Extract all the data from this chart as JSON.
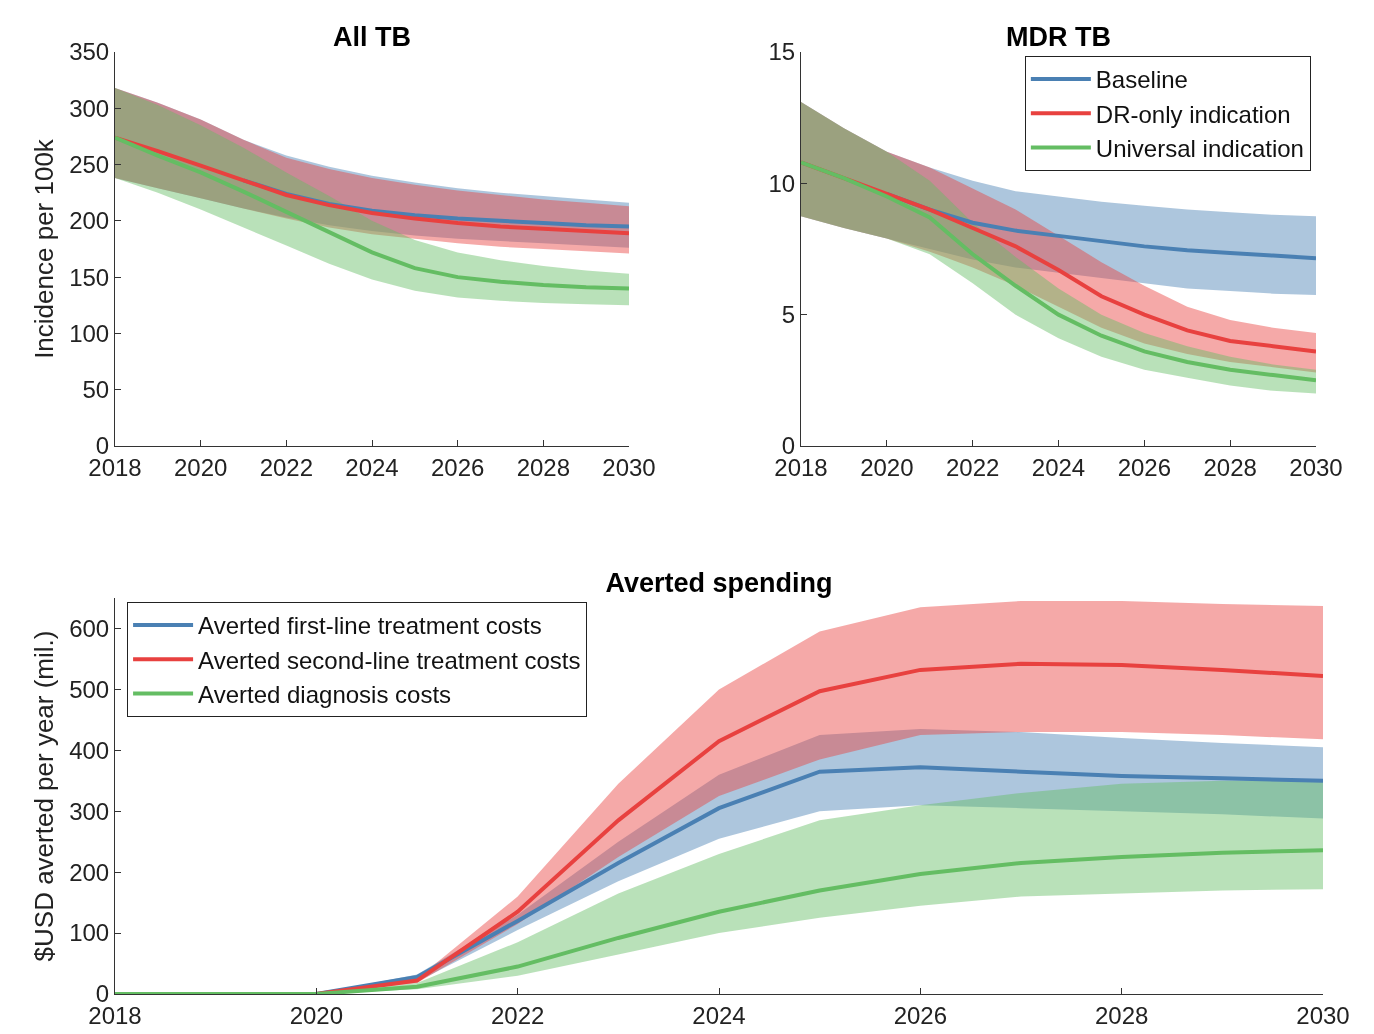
{
  "chart_data": [
    {
      "type": "line",
      "title": "All TB",
      "ylabel": "Incidence per 100k",
      "x": [
        2018,
        2019,
        2020,
        2021,
        2022,
        2023,
        2024,
        2025,
        2026,
        2027,
        2028,
        2029,
        2030
      ],
      "xlim": [
        2018,
        2030
      ],
      "xticks": [
        2018,
        2020,
        2022,
        2024,
        2026,
        2028,
        2030
      ],
      "ylim": [
        0,
        350
      ],
      "yticks": [
        0,
        50,
        100,
        150,
        200,
        250,
        300,
        350
      ],
      "grid": false,
      "legend": false,
      "series": [
        {
          "color": "#4a80b3",
          "values": [
            null,
            null,
            null,
            236,
            224,
            215,
            209,
            205,
            202,
            200,
            198,
            196,
            195
          ],
          "upper": [
            318,
            305,
            290,
            272,
            258,
            248,
            240,
            234,
            229,
            225,
            222,
            219,
            216
          ],
          "lower": [
            238,
            229,
            220,
            211,
            203,
            196,
            191,
            187,
            184,
            182,
            180,
            178,
            176
          ]
        },
        {
          "color": "#e8413f",
          "values": [
            274,
            262,
            249,
            236,
            223,
            214,
            207,
            202,
            198,
            195,
            193,
            191,
            189
          ],
          "upper": [
            318,
            305,
            290,
            272,
            256,
            246,
            238,
            232,
            227,
            223,
            219,
            216,
            213
          ],
          "lower": [
            238,
            229,
            220,
            211,
            202,
            194,
            188,
            184,
            180,
            177,
            175,
            173,
            171
          ]
        },
        {
          "color": "#64bd63",
          "values": [
            274,
            258,
            243,
            226,
            208,
            190,
            172,
            158,
            150,
            146,
            143,
            141,
            140
          ],
          "upper": [
            318,
            303,
            285,
            265,
            243,
            222,
            200,
            183,
            172,
            165,
            160,
            156,
            153
          ],
          "lower": [
            238,
            225,
            210,
            194,
            178,
            162,
            148,
            138,
            132,
            129,
            127,
            126,
            125
          ]
        }
      ]
    },
    {
      "type": "line",
      "title": "MDR TB",
      "x": [
        2018,
        2019,
        2020,
        2021,
        2022,
        2023,
        2024,
        2025,
        2026,
        2027,
        2028,
        2029,
        2030
      ],
      "xlim": [
        2018,
        2030
      ],
      "xticks": [
        2018,
        2020,
        2022,
        2024,
        2026,
        2028,
        2030
      ],
      "ylim": [
        0,
        15
      ],
      "yticks": [
        0,
        5,
        10,
        15
      ],
      "grid": false,
      "legend": "top right",
      "series": [
        {
          "name": "Baseline",
          "color": "#4a80b3",
          "values": [
            null,
            null,
            9.6,
            9.0,
            8.5,
            8.2,
            8.0,
            7.8,
            7.6,
            7.45,
            7.35,
            7.25,
            7.15
          ],
          "upper": [
            13.1,
            12.1,
            11.2,
            10.6,
            10.1,
            9.7,
            9.5,
            9.3,
            9.15,
            9.0,
            8.9,
            8.8,
            8.75
          ],
          "lower": [
            8.75,
            8.3,
            7.9,
            7.5,
            7.1,
            6.8,
            6.6,
            6.4,
            6.2,
            6.0,
            5.9,
            5.8,
            5.75
          ]
        },
        {
          "name": "DR-only indication",
          "color": "#e8413f",
          "values": [
            10.8,
            10.2,
            9.6,
            9.0,
            8.3,
            7.6,
            6.7,
            5.7,
            5.0,
            4.4,
            4.0,
            3.8,
            3.6
          ],
          "upper": [
            13.1,
            12.1,
            11.2,
            10.6,
            9.8,
            9.0,
            8.0,
            7.0,
            6.1,
            5.3,
            4.8,
            4.5,
            4.3
          ],
          "lower": [
            8.75,
            8.3,
            7.9,
            7.4,
            6.8,
            6.1,
            5.3,
            4.5,
            3.9,
            3.5,
            3.2,
            3.0,
            2.8
          ]
        },
        {
          "name": "Universal indication",
          "color": "#64bd63",
          "values": [
            10.8,
            10.2,
            9.5,
            8.7,
            7.3,
            6.1,
            5.0,
            4.2,
            3.6,
            3.2,
            2.9,
            2.7,
            2.5
          ],
          "upper": [
            13.1,
            12.1,
            11.2,
            10.1,
            8.5,
            7.2,
            6.0,
            5.0,
            4.3,
            3.8,
            3.4,
            3.1,
            2.9
          ],
          "lower": [
            8.75,
            8.3,
            7.9,
            7.3,
            6.2,
            5.0,
            4.1,
            3.4,
            2.9,
            2.6,
            2.3,
            2.1,
            2.0
          ]
        }
      ]
    },
    {
      "type": "line",
      "title": "Averted spending",
      "ylabel": "$USD averted per year (mil.)",
      "x": [
        2018,
        2019,
        2020,
        2021,
        2022,
        2023,
        2024,
        2025,
        2026,
        2027,
        2028,
        2029,
        2030
      ],
      "xlim": [
        2018,
        2030
      ],
      "xticks": [
        2018,
        2020,
        2022,
        2024,
        2026,
        2028,
        2030
      ],
      "ylim": [
        0,
        650
      ],
      "yticks": [
        0,
        100,
        200,
        300,
        400,
        500,
        600
      ],
      "grid": false,
      "legend": "top left",
      "series": [
        {
          "name": "Averted first-line treatment costs",
          "color": "#4a80b3",
          "values": [
            0,
            0,
            0,
            28,
            120,
            215,
            305,
            365,
            372,
            365,
            358,
            354,
            350
          ],
          "upper": [
            0,
            0,
            0,
            32,
            130,
            250,
            360,
            425,
            435,
            430,
            420,
            412,
            405
          ],
          "lower": [
            0,
            0,
            0,
            20,
            105,
            185,
            255,
            300,
            310,
            305,
            300,
            295,
            288
          ]
        },
        {
          "name": "Averted second-line treatment costs",
          "color": "#e8413f",
          "values": [
            0,
            0,
            0,
            22,
            135,
            285,
            415,
            497,
            532,
            542,
            540,
            532,
            522
          ],
          "upper": [
            0,
            0,
            0,
            25,
            160,
            345,
            500,
            595,
            635,
            645,
            645,
            640,
            637
          ],
          "lower": [
            0,
            0,
            0,
            18,
            115,
            225,
            325,
            385,
            425,
            430,
            430,
            425,
            418
          ]
        },
        {
          "name": "Averted diagnosis costs",
          "color": "#64bd63",
          "values": [
            0,
            0,
            0,
            12,
            45,
            92,
            135,
            170,
            197,
            215,
            225,
            232,
            236
          ],
          "upper": [
            0,
            0,
            0,
            18,
            85,
            165,
            230,
            285,
            310,
            330,
            345,
            350,
            352
          ],
          "lower": [
            0,
            0,
            0,
            8,
            30,
            65,
            100,
            125,
            145,
            160,
            165,
            170,
            172
          ]
        }
      ]
    }
  ]
}
